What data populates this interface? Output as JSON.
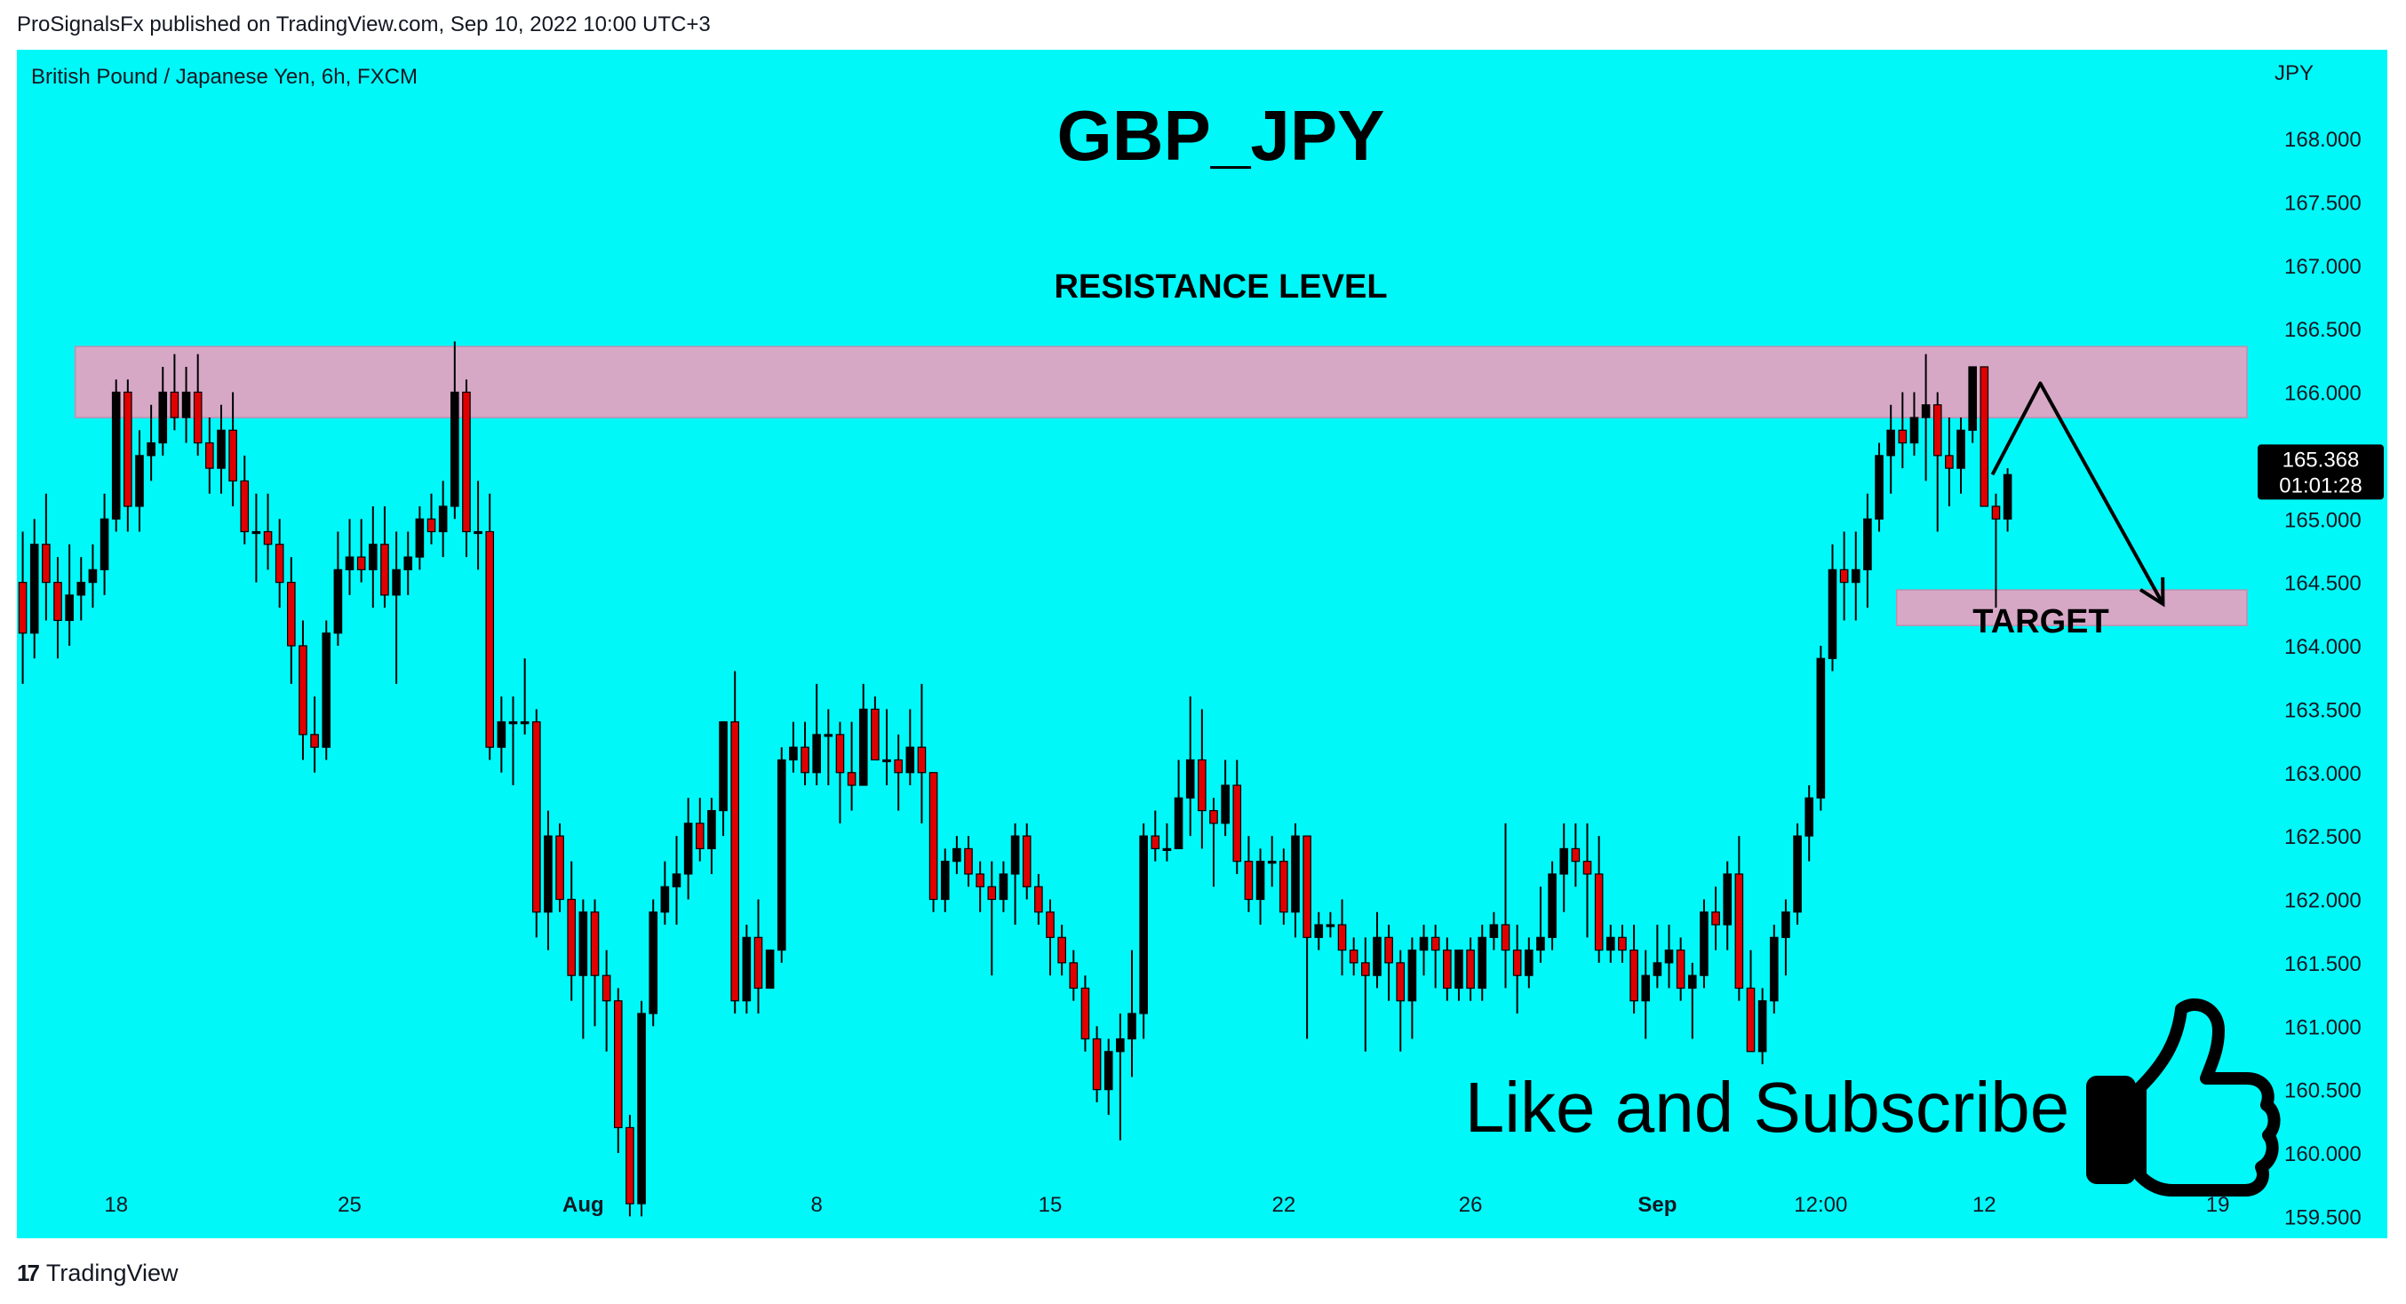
{
  "header": {
    "published_by": "ProSignalsFx published on TradingView.com, Sep 10, 2022 10:00 UTC+3"
  },
  "footer": {
    "brand": "TradingView",
    "logo_mark": "17"
  },
  "chart_data": {
    "type": "candlestick",
    "symbol_line": "British Pound / Japanese Yen, 6h, FXCM",
    "title": "GBP_JPY",
    "currency": "JPY",
    "ylim": [
      159.3,
      168.4
    ],
    "y_ticks": [
      "168.000",
      "167.500",
      "167.000",
      "166.500",
      "166.000",
      "165.500",
      "165.000",
      "164.500",
      "164.000",
      "163.500",
      "163.000",
      "162.500",
      "162.000",
      "161.500",
      "161.000",
      "160.500",
      "160.000",
      "159.500"
    ],
    "x_ticks": [
      {
        "label": "18",
        "i": 8,
        "bold": false
      },
      {
        "label": "25",
        "i": 28,
        "bold": false
      },
      {
        "label": "Aug",
        "i": 48,
        "bold": true
      },
      {
        "label": "8",
        "i": 68,
        "bold": false
      },
      {
        "label": "15",
        "i": 88,
        "bold": false
      },
      {
        "label": "22",
        "i": 108,
        "bold": false
      },
      {
        "label": "26",
        "i": 124,
        "bold": false
      },
      {
        "label": "Sep",
        "i": 140,
        "bold": true
      },
      {
        "label": "12:00",
        "i": 154,
        "bold": false
      },
      {
        "label": "12",
        "i": 168,
        "bold": false
      },
      {
        "label": "19",
        "i": 188,
        "bold": false
      }
    ],
    "x_slots": 191,
    "price_label": {
      "value": "165.368",
      "countdown": "01:01:28",
      "price": 165.37
    },
    "zones": [
      {
        "name": "resistance",
        "label": "RESISTANCE LEVEL",
        "top": 166.36,
        "bottom": 165.8,
        "i_from": 5,
        "i_to": 191
      },
      {
        "name": "target",
        "label": "TARGET",
        "top": 164.44,
        "bottom": 164.16,
        "i_from": 161,
        "i_to": 191
      }
    ],
    "projection": [
      [
        169.2,
        165.35
      ],
      [
        173.3,
        166.07
      ],
      [
        183.8,
        164.33
      ]
    ],
    "annotation": "Like and Subscribe",
    "colors": {
      "up": "#000000",
      "down": "#e00000",
      "background": "#00f8f8",
      "zone": "#d6a8c6",
      "price_label": "#000000"
    },
    "candles": [
      [
        164.5,
        164.9,
        163.7,
        164.1
      ],
      [
        164.1,
        165.0,
        163.9,
        164.8
      ],
      [
        164.8,
        165.2,
        164.2,
        164.5
      ],
      [
        164.5,
        164.7,
        163.9,
        164.2
      ],
      [
        164.2,
        164.8,
        164.0,
        164.4
      ],
      [
        164.4,
        164.7,
        164.2,
        164.5
      ],
      [
        164.5,
        164.8,
        164.3,
        164.6
      ],
      [
        164.6,
        165.2,
        164.4,
        165.0
      ],
      [
        165.0,
        166.1,
        164.9,
        166.0
      ],
      [
        166.0,
        166.1,
        164.9,
        165.1
      ],
      [
        165.1,
        165.7,
        164.9,
        165.5
      ],
      [
        165.5,
        165.9,
        165.3,
        165.6
      ],
      [
        165.6,
        166.2,
        165.5,
        166.0
      ],
      [
        166.0,
        166.3,
        165.7,
        165.8
      ],
      [
        165.8,
        166.2,
        165.6,
        166.0
      ],
      [
        166.0,
        166.3,
        165.5,
        165.6
      ],
      [
        165.6,
        165.8,
        165.2,
        165.4
      ],
      [
        165.4,
        165.9,
        165.2,
        165.7
      ],
      [
        165.7,
        166.0,
        165.1,
        165.3
      ],
      [
        165.3,
        165.5,
        164.8,
        164.9
      ],
      [
        164.9,
        165.2,
        164.5,
        164.9
      ],
      [
        164.9,
        165.2,
        164.6,
        164.8
      ],
      [
        164.8,
        165.0,
        164.3,
        164.5
      ],
      [
        164.5,
        164.7,
        163.7,
        164.0
      ],
      [
        164.0,
        164.2,
        163.1,
        163.3
      ],
      [
        163.3,
        163.6,
        163.0,
        163.2
      ],
      [
        163.2,
        164.2,
        163.1,
        164.1
      ],
      [
        164.1,
        164.9,
        164.0,
        164.6
      ],
      [
        164.6,
        165.0,
        164.4,
        164.7
      ],
      [
        164.7,
        165.0,
        164.5,
        164.6
      ],
      [
        164.6,
        165.1,
        164.3,
        164.8
      ],
      [
        164.8,
        165.1,
        164.3,
        164.4
      ],
      [
        164.4,
        164.9,
        163.7,
        164.6
      ],
      [
        164.6,
        164.9,
        164.4,
        164.7
      ],
      [
        164.7,
        165.1,
        164.6,
        165.0
      ],
      [
        165.0,
        165.2,
        164.8,
        164.9
      ],
      [
        164.9,
        165.3,
        164.7,
        165.1
      ],
      [
        165.1,
        166.4,
        165.0,
        166.0
      ],
      [
        166.0,
        166.1,
        164.7,
        164.9
      ],
      [
        164.9,
        165.3,
        164.6,
        164.9
      ],
      [
        164.9,
        165.2,
        163.1,
        163.2
      ],
      [
        163.2,
        163.6,
        163.0,
        163.4
      ],
      [
        163.4,
        163.6,
        162.9,
        163.4
      ],
      [
        163.4,
        163.9,
        163.3,
        163.4
      ],
      [
        163.4,
        163.5,
        161.7,
        161.9
      ],
      [
        161.9,
        162.7,
        161.6,
        162.5
      ],
      [
        162.5,
        162.6,
        161.9,
        162.0
      ],
      [
        162.0,
        162.3,
        161.2,
        161.4
      ],
      [
        161.4,
        162.0,
        160.9,
        161.9
      ],
      [
        161.9,
        162.0,
        161.0,
        161.4
      ],
      [
        161.4,
        161.6,
        160.8,
        161.2
      ],
      [
        161.2,
        161.3,
        160.0,
        160.2
      ],
      [
        160.2,
        160.3,
        159.5,
        159.6
      ],
      [
        159.6,
        161.2,
        159.5,
        161.1
      ],
      [
        161.1,
        162.0,
        161.0,
        161.9
      ],
      [
        161.9,
        162.3,
        161.8,
        162.1
      ],
      [
        162.1,
        162.5,
        161.8,
        162.2
      ],
      [
        162.2,
        162.8,
        162.0,
        162.6
      ],
      [
        162.6,
        162.8,
        162.3,
        162.4
      ],
      [
        162.4,
        162.8,
        162.2,
        162.7
      ],
      [
        162.7,
        163.4,
        162.5,
        163.4
      ],
      [
        163.4,
        163.8,
        161.1,
        161.2
      ],
      [
        161.2,
        161.8,
        161.1,
        161.7
      ],
      [
        161.7,
        162.0,
        161.1,
        161.3
      ],
      [
        161.3,
        161.6,
        161.3,
        161.6
      ],
      [
        161.6,
        163.2,
        161.5,
        163.1
      ],
      [
        163.1,
        163.4,
        163.0,
        163.2
      ],
      [
        163.2,
        163.4,
        162.9,
        163.0
      ],
      [
        163.0,
        163.7,
        162.9,
        163.3
      ],
      [
        163.3,
        163.5,
        162.9,
        163.3
      ],
      [
        163.3,
        163.4,
        162.6,
        163.0
      ],
      [
        163.0,
        163.4,
        162.7,
        162.9
      ],
      [
        162.9,
        163.7,
        162.9,
        163.5
      ],
      [
        163.5,
        163.6,
        163.1,
        163.1
      ],
      [
        163.1,
        163.5,
        162.9,
        163.1
      ],
      [
        163.1,
        163.3,
        162.7,
        163.0
      ],
      [
        163.0,
        163.5,
        162.9,
        163.2
      ],
      [
        163.2,
        163.7,
        162.6,
        163.0
      ],
      [
        163.0,
        163.0,
        161.9,
        162.0
      ],
      [
        162.0,
        162.4,
        161.9,
        162.3
      ],
      [
        162.3,
        162.5,
        162.2,
        162.4
      ],
      [
        162.4,
        162.5,
        162.1,
        162.2
      ],
      [
        162.2,
        162.3,
        161.9,
        162.1
      ],
      [
        162.1,
        162.3,
        161.4,
        162.0
      ],
      [
        162.0,
        162.3,
        161.9,
        162.2
      ],
      [
        162.2,
        162.6,
        161.8,
        162.5
      ],
      [
        162.5,
        162.6,
        162.0,
        162.1
      ],
      [
        162.1,
        162.2,
        161.8,
        161.9
      ],
      [
        161.9,
        162.0,
        161.4,
        161.7
      ],
      [
        161.7,
        161.8,
        161.4,
        161.5
      ],
      [
        161.5,
        161.6,
        161.2,
        161.3
      ],
      [
        161.3,
        161.4,
        160.8,
        160.9
      ],
      [
        160.9,
        161.0,
        160.4,
        160.5
      ],
      [
        160.5,
        160.9,
        160.3,
        160.8
      ],
      [
        160.8,
        161.1,
        160.1,
        160.9
      ],
      [
        160.9,
        161.6,
        160.6,
        161.1
      ],
      [
        161.1,
        162.6,
        160.9,
        162.5
      ],
      [
        162.5,
        162.7,
        162.3,
        162.4
      ],
      [
        162.4,
        162.6,
        162.3,
        162.4
      ],
      [
        162.4,
        163.1,
        162.4,
        162.8
      ],
      [
        162.8,
        163.6,
        162.5,
        163.1
      ],
      [
        163.1,
        163.5,
        162.4,
        162.7
      ],
      [
        162.7,
        162.8,
        162.1,
        162.6
      ],
      [
        162.6,
        163.1,
        162.5,
        162.9
      ],
      [
        162.9,
        163.1,
        162.2,
        162.3
      ],
      [
        162.3,
        162.5,
        161.9,
        162.0
      ],
      [
        162.0,
        162.4,
        161.8,
        162.3
      ],
      [
        162.3,
        162.5,
        162.1,
        162.3
      ],
      [
        162.3,
        162.4,
        161.8,
        161.9
      ],
      [
        161.9,
        162.6,
        161.7,
        162.5
      ],
      [
        162.5,
        162.5,
        160.9,
        161.7
      ],
      [
        161.7,
        161.9,
        161.6,
        161.8
      ],
      [
        161.8,
        161.9,
        161.7,
        161.8
      ],
      [
        161.8,
        162.0,
        161.4,
        161.6
      ],
      [
        161.6,
        161.7,
        161.4,
        161.5
      ],
      [
        161.5,
        161.7,
        160.8,
        161.4
      ],
      [
        161.4,
        161.9,
        161.3,
        161.7
      ],
      [
        161.7,
        161.8,
        161.2,
        161.5
      ],
      [
        161.5,
        161.6,
        160.8,
        161.2
      ],
      [
        161.2,
        161.7,
        160.9,
        161.6
      ],
      [
        161.6,
        161.8,
        161.4,
        161.7
      ],
      [
        161.7,
        161.8,
        161.3,
        161.6
      ],
      [
        161.6,
        161.7,
        161.2,
        161.3
      ],
      [
        161.3,
        161.6,
        161.2,
        161.6
      ],
      [
        161.6,
        161.7,
        161.2,
        161.3
      ],
      [
        161.3,
        161.8,
        161.2,
        161.7
      ],
      [
        161.7,
        161.9,
        161.6,
        161.8
      ],
      [
        161.8,
        162.6,
        161.3,
        161.6
      ],
      [
        161.6,
        161.8,
        161.1,
        161.4
      ],
      [
        161.4,
        161.7,
        161.3,
        161.6
      ],
      [
        161.6,
        162.1,
        161.5,
        161.7
      ],
      [
        161.7,
        162.3,
        161.6,
        162.2
      ],
      [
        162.2,
        162.6,
        161.9,
        162.4
      ],
      [
        162.4,
        162.6,
        162.1,
        162.3
      ],
      [
        162.3,
        162.6,
        161.7,
        162.2
      ],
      [
        162.2,
        162.5,
        161.5,
        161.6
      ],
      [
        161.6,
        161.8,
        161.5,
        161.7
      ],
      [
        161.7,
        161.8,
        161.5,
        161.6
      ],
      [
        161.6,
        161.8,
        161.1,
        161.2
      ],
      [
        161.2,
        161.6,
        160.9,
        161.4
      ],
      [
        161.4,
        161.8,
        161.3,
        161.5
      ],
      [
        161.5,
        161.8,
        161.3,
        161.6
      ],
      [
        161.6,
        161.7,
        161.2,
        161.3
      ],
      [
        161.3,
        161.5,
        160.9,
        161.4
      ],
      [
        161.4,
        162.0,
        161.3,
        161.9
      ],
      [
        161.9,
        162.1,
        161.6,
        161.8
      ],
      [
        161.8,
        162.3,
        161.6,
        162.2
      ],
      [
        162.2,
        162.5,
        161.2,
        161.3
      ],
      [
        161.3,
        161.6,
        160.8,
        160.8
      ],
      [
        160.8,
        161.3,
        160.7,
        161.2
      ],
      [
        161.2,
        161.8,
        161.1,
        161.7
      ],
      [
        161.7,
        162.0,
        161.4,
        161.9
      ],
      [
        161.9,
        162.6,
        161.8,
        162.5
      ],
      [
        162.5,
        162.9,
        162.3,
        162.8
      ],
      [
        162.8,
        164.0,
        162.7,
        163.9
      ],
      [
        163.9,
        164.8,
        163.8,
        164.6
      ],
      [
        164.6,
        164.9,
        164.2,
        164.5
      ],
      [
        164.5,
        164.9,
        164.2,
        164.6
      ],
      [
        164.6,
        165.2,
        164.3,
        165.0
      ],
      [
        165.0,
        165.6,
        164.9,
        165.5
      ],
      [
        165.5,
        165.9,
        165.2,
        165.7
      ],
      [
        165.7,
        166.0,
        165.4,
        165.6
      ],
      [
        165.6,
        166.0,
        165.5,
        165.8
      ],
      [
        165.8,
        166.3,
        165.3,
        165.9
      ],
      [
        165.9,
        166.0,
        164.9,
        165.5
      ],
      [
        165.5,
        165.8,
        165.1,
        165.4
      ],
      [
        165.4,
        165.8,
        165.2,
        165.7
      ],
      [
        165.7,
        166.2,
        165.6,
        166.2
      ],
      [
        166.2,
        166.2,
        165.1,
        165.1
      ],
      [
        165.1,
        165.2,
        164.3,
        165.0
      ],
      [
        165.0,
        165.4,
        164.9,
        165.35
      ]
    ]
  },
  "colors": {
    "panel": "#00f8f8",
    "text": "#131722"
  }
}
